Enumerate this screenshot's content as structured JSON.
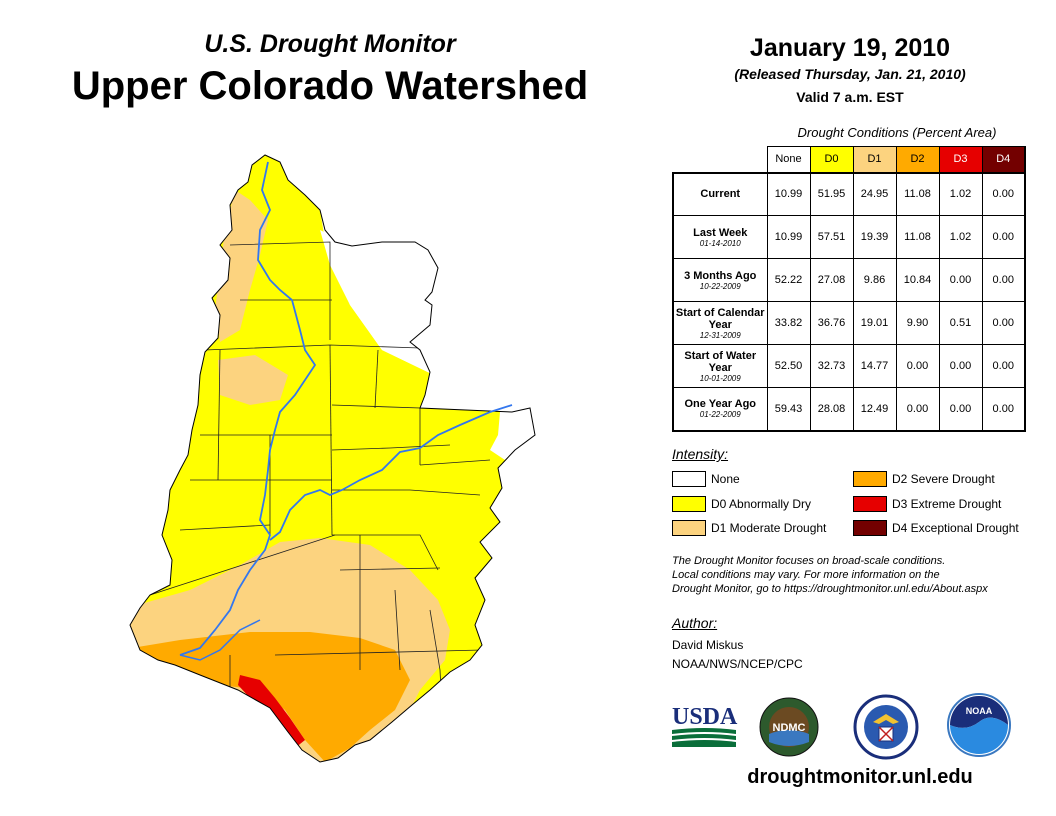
{
  "header": {
    "subtitle": "U.S. Drought Monitor",
    "title": "Upper Colorado Watershed",
    "date": "January 19, 2010",
    "released": "(Released Thursday, Jan. 21, 2010)",
    "valid": "Valid 7 a.m. EST"
  },
  "colors": {
    "none": "#ffffff",
    "d0": "#ffff00",
    "d1": "#fcd37f",
    "d2": "#ffaa00",
    "d3": "#e60000",
    "d4": "#730000",
    "river": "#3377ee"
  },
  "table": {
    "title": "Drought Conditions (Percent Area)",
    "columns": [
      "None",
      "D0",
      "D1",
      "D2",
      "D3",
      "D4"
    ],
    "rows": [
      {
        "label": "Current",
        "date": "",
        "values": [
          "10.99",
          "51.95",
          "24.95",
          "11.08",
          "1.02",
          "0.00"
        ]
      },
      {
        "label": "Last Week",
        "date": "01-14-2010",
        "values": [
          "10.99",
          "57.51",
          "19.39",
          "11.08",
          "1.02",
          "0.00"
        ]
      },
      {
        "label": "3 Months Ago",
        "date": "10-22-2009",
        "values": [
          "52.22",
          "27.08",
          "9.86",
          "10.84",
          "0.00",
          "0.00"
        ]
      },
      {
        "label": "Start of Calendar Year",
        "date": "12-31-2009",
        "values": [
          "33.82",
          "36.76",
          "19.01",
          "9.90",
          "0.51",
          "0.00"
        ]
      },
      {
        "label": "Start of Water Year",
        "date": "10-01-2009",
        "values": [
          "52.50",
          "32.73",
          "14.77",
          "0.00",
          "0.00",
          "0.00"
        ]
      },
      {
        "label": "One Year Ago",
        "date": "01-22-2009",
        "values": [
          "59.43",
          "28.08",
          "12.49",
          "0.00",
          "0.00",
          "0.00"
        ]
      }
    ]
  },
  "legend": {
    "heading": "Intensity:",
    "none": "None",
    "d0": "D0 Abnormally Dry",
    "d1": "D1 Moderate Drought",
    "d2": "D2 Severe Drought",
    "d3": "D3 Extreme Drought",
    "d4": "D4 Exceptional Drought"
  },
  "note": {
    "line1": "The Drought Monitor focuses on broad-scale conditions.",
    "line2": "Local conditions may vary. For more information on the",
    "line3": "Drought Monitor, go to https://droughtmonitor.unl.edu/About.aspx"
  },
  "author": {
    "heading": "Author:",
    "name": "David Miskus",
    "org": "NOAA/NWS/NCEP/CPC"
  },
  "logos": {
    "usda": "USDA",
    "ndmc": "NDMC",
    "noaa": "NOAA"
  },
  "site": "droughtmonitor.unl.edu"
}
